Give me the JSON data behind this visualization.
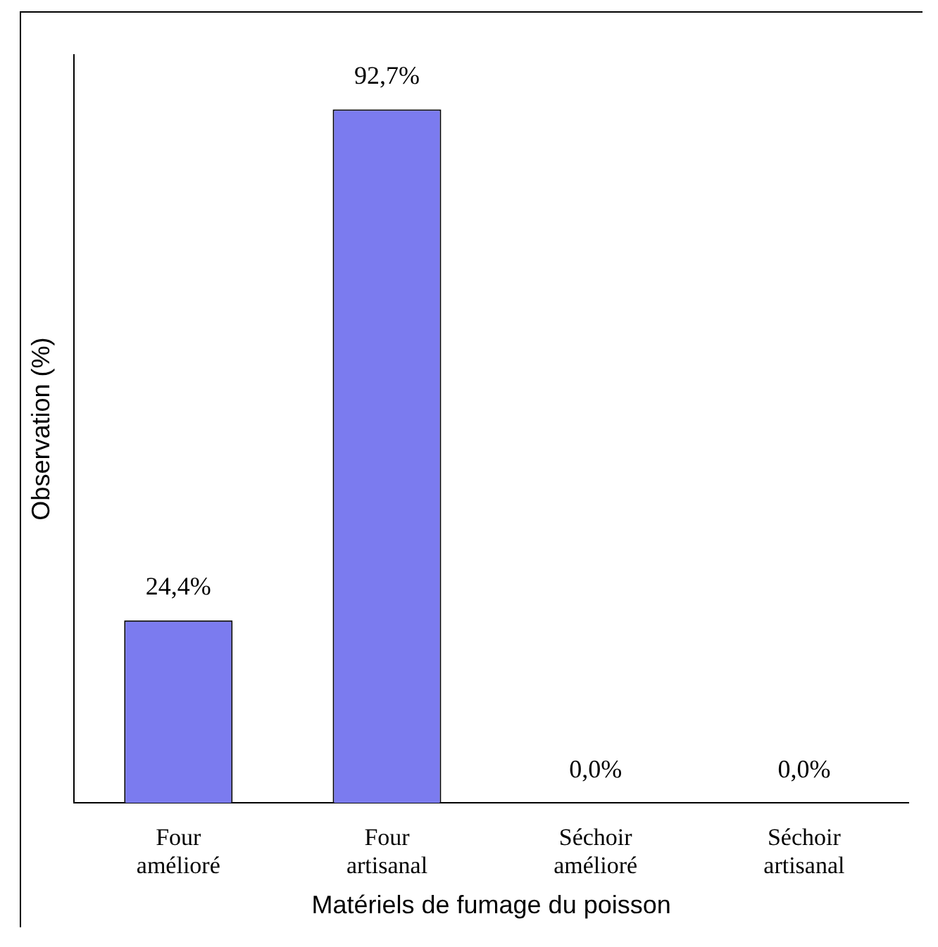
{
  "chart_data": {
    "type": "bar",
    "xlabel": "Matériels de fumage du poisson",
    "ylabel": "Observation (%)",
    "categories": [
      "Four amélioré",
      "Four artisanal",
      "Séchoir amélioré",
      "Séchoir artisanal"
    ],
    "values": [
      24.4,
      92.7,
      0,
      0
    ],
    "color": "#7b7bef",
    "value_labels": [
      "24,4%",
      "92,7%",
      "0,0%",
      "0,0%"
    ],
    "tick_labels": "x",
    "grid": false,
    "legend": false
  }
}
